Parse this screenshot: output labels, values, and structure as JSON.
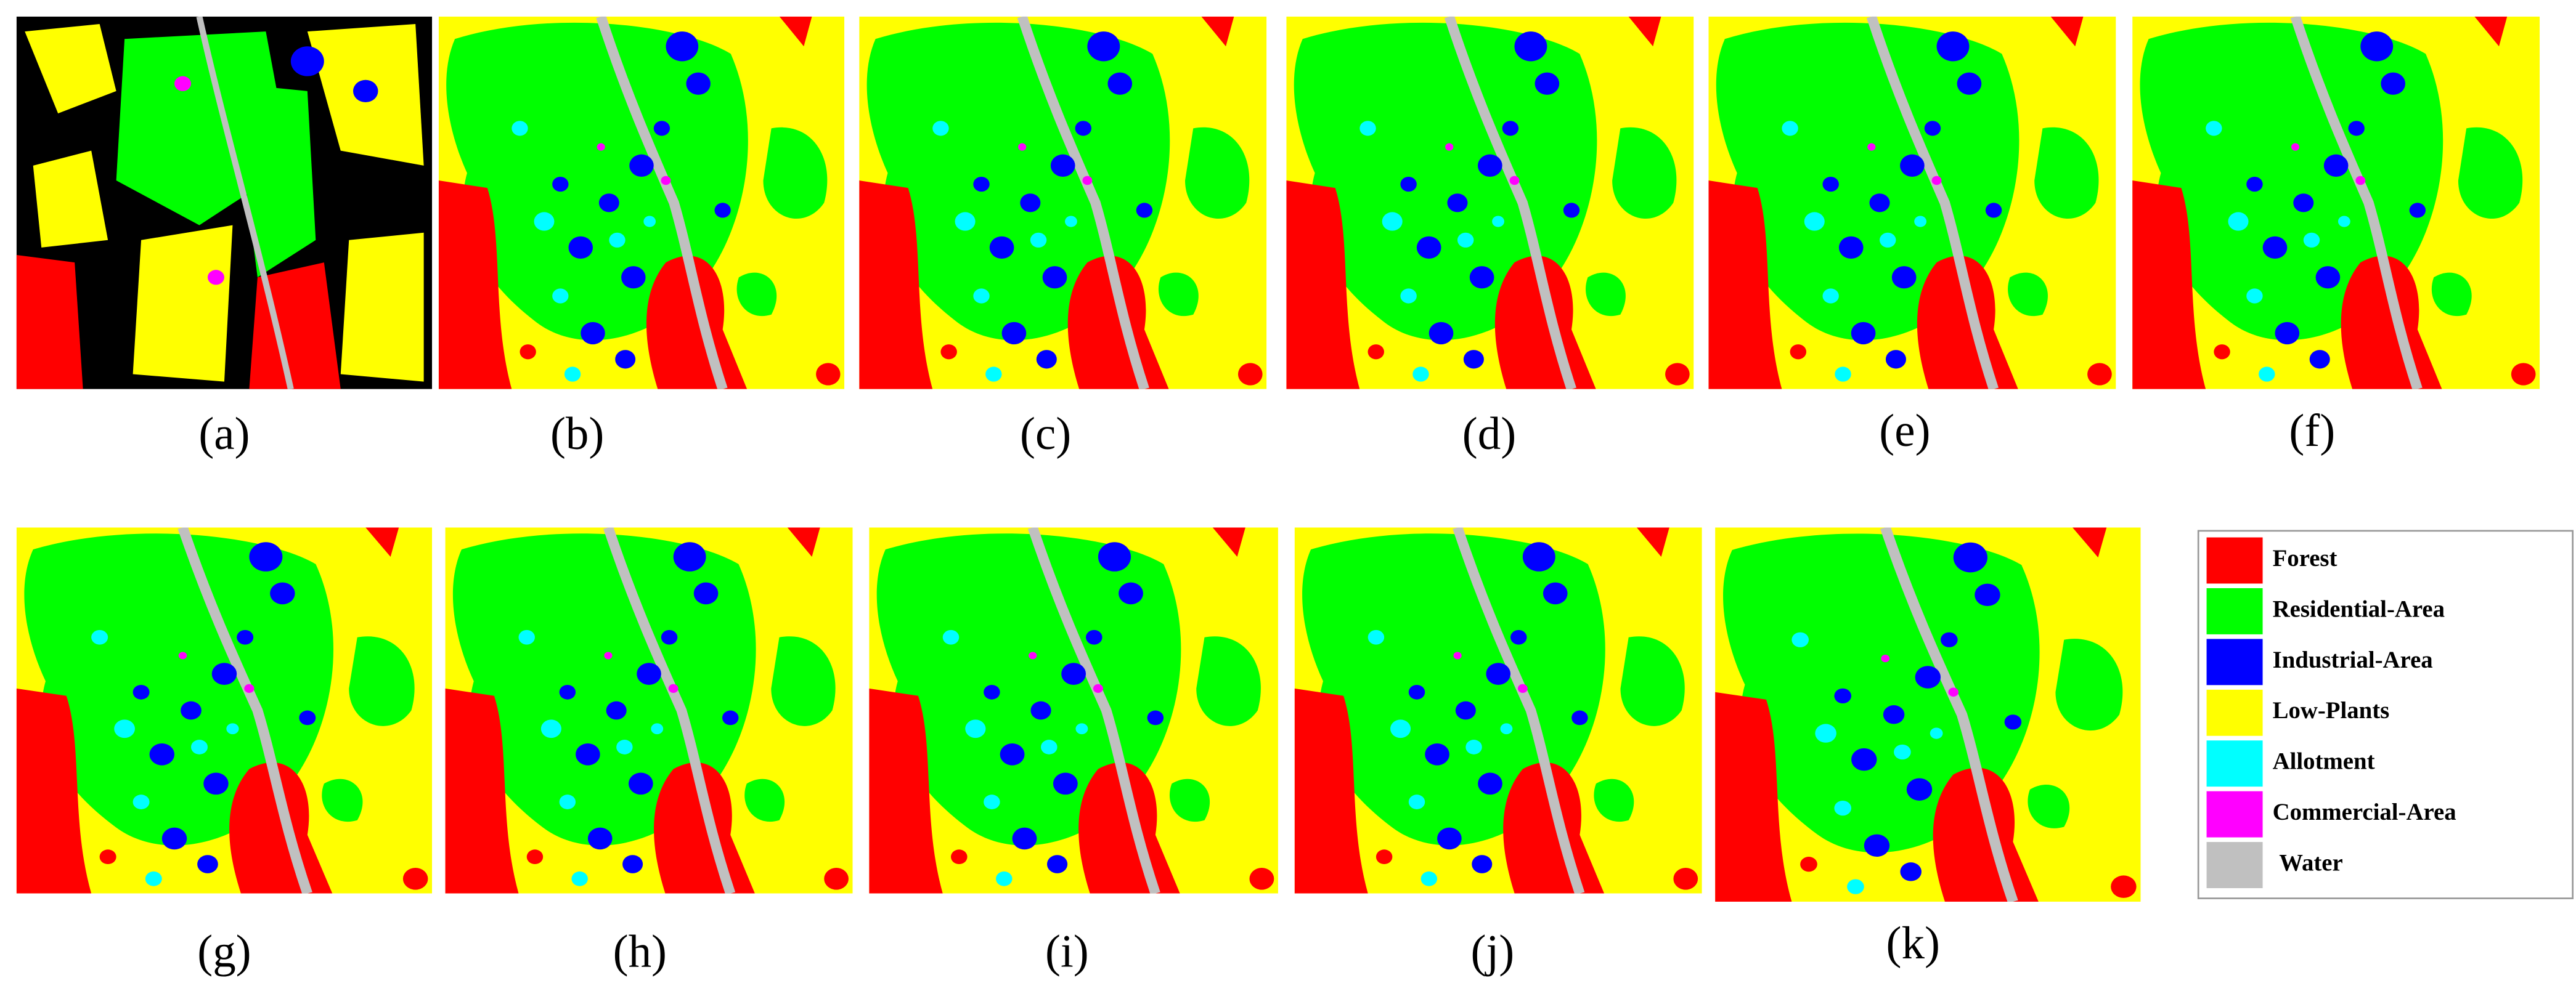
{
  "panels": [
    {
      "label": "(a)"
    },
    {
      "label": "(b)"
    },
    {
      "label": "(c)"
    },
    {
      "label": "(d)"
    },
    {
      "label": "(e)"
    },
    {
      "label": "(f)"
    },
    {
      "label": "(g)"
    },
    {
      "label": "(h)"
    },
    {
      "label": "(i)"
    },
    {
      "label": "(j)"
    },
    {
      "label": "(k)"
    }
  ],
  "legend": [
    {
      "label": "Forest",
      "color": "#ff0000"
    },
    {
      "label": "Residential-Area",
      "color": "#00ff00"
    },
    {
      "label": "Industrial-Area",
      "color": "#0000ff"
    },
    {
      "label": "Low-Plants",
      "color": "#ffff00"
    },
    {
      "label": "Allotment",
      "color": "#00ffff"
    },
    {
      "label": "Commercial-Area",
      "color": "#ff00ff"
    },
    {
      "label": "Water",
      "color": "#c0c0c0"
    }
  ]
}
